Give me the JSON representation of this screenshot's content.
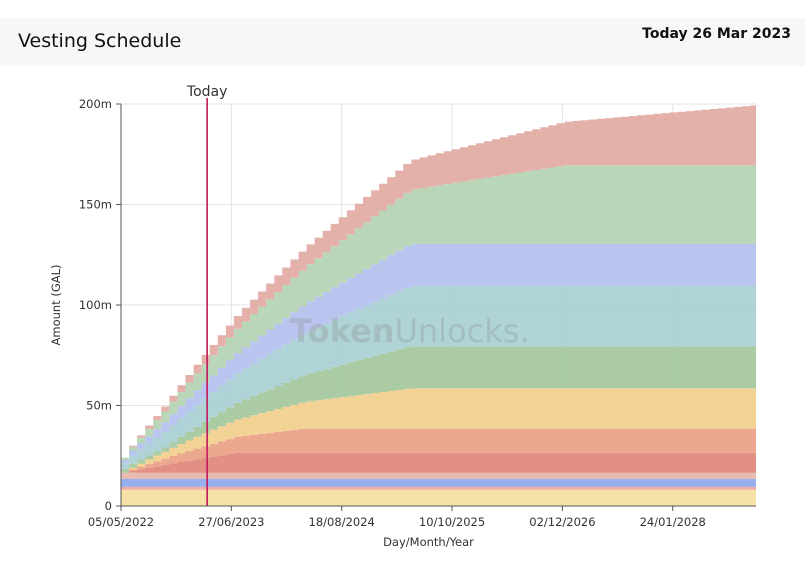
{
  "header": {
    "title": "Vesting Schedule",
    "today_date": "Today 26 Mar 2023"
  },
  "watermark": {
    "brand_bold": "Token",
    "brand_light": "Unlocks."
  },
  "chart_data": {
    "type": "area",
    "stacked": true,
    "xlabel": "Day/Month/Year",
    "ylabel": "Amount (GAL)",
    "x_ticks": [
      "05/05/2022",
      "27/06/2023",
      "18/08/2024",
      "10/10/2025",
      "02/12/2026",
      "24/01/2028"
    ],
    "y_ticks": [
      "0",
      "50m",
      "100m",
      "150m",
      "200m"
    ],
    "ylim": [
      0,
      200
    ],
    "y_unit": "millions GAL",
    "xlim_years": [
      2022.34,
      2028.9
    ],
    "grid": true,
    "today_marker": {
      "label": "Today",
      "x_year": 2023.23,
      "color": "#c2185b"
    },
    "steps_per_year": 12,
    "series": [
      {
        "color": "#f5dfa0",
        "start_year": 2022.34,
        "end_year": 2022.34,
        "v0": 8,
        "v1": 8
      },
      {
        "color": "#f1a8a2",
        "start_year": 2022.34,
        "end_year": 2022.34,
        "v0": 1.5,
        "v1": 1.5
      },
      {
        "color": "#8ea8ec",
        "start_year": 2022.34,
        "end_year": 2022.34,
        "v0": 4,
        "v1": 4
      },
      {
        "color": "#e6b5a8",
        "start_year": 2022.34,
        "end_year": 2022.34,
        "v0": 3,
        "v1": 3
      },
      {
        "color": "#e0867a",
        "start_year": 2022.34,
        "end_year": 2023.5,
        "v0": 0,
        "v1": 10
      },
      {
        "color": "#eaa085",
        "start_year": 2022.34,
        "end_year": 2024.2,
        "v0": 0,
        "v1": 12
      },
      {
        "color": "#f1cf8c",
        "start_year": 2022.34,
        "end_year": 2025.3,
        "v0": 0,
        "v1": 20
      },
      {
        "color": "#a3c79b",
        "start_year": 2022.75,
        "end_year": 2025.3,
        "v0": 2,
        "v1": 21
      },
      {
        "color": "#a8cfd3",
        "start_year": 2022.34,
        "end_year": 2025.3,
        "v0": 3,
        "v1": 30
      },
      {
        "color": "#b4c0ee",
        "start_year": 2022.34,
        "end_year": 2025.3,
        "v0": 1.5,
        "v1": 21
      },
      {
        "color": "#b3d4b2",
        "start_year": 2022.34,
        "end_year": 2026.9,
        "v0": 1,
        "v1": 39
      },
      {
        "color": "#e2aaa3",
        "start_year": 2022.34,
        "end_year": 2028.9,
        "v0": 0,
        "v1": 30
      }
    ]
  }
}
